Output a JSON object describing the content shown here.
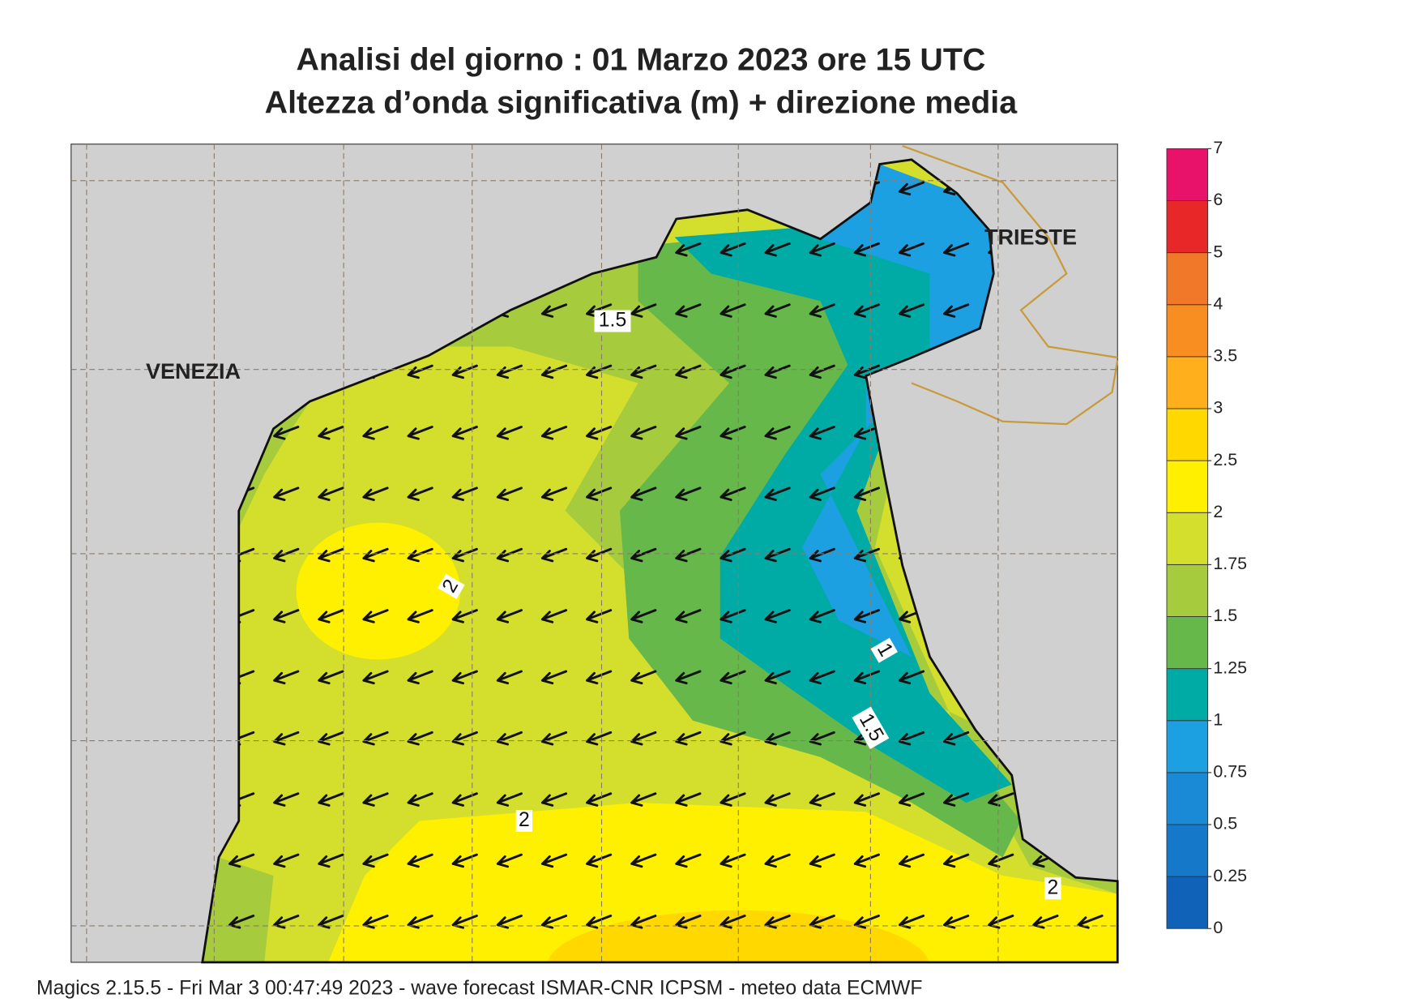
{
  "header": {
    "title": "Analisi del giorno :  01   Marzo   2023   ore 15 UTC",
    "subtitle": "Altezza d’onda significativa (m) + direzione media"
  },
  "map": {
    "places": [
      "VENEZIA",
      "TRIESTE"
    ],
    "contour_labels": [
      "1.5",
      "2",
      "1",
      "1.5",
      "2",
      "2"
    ]
  },
  "legend": {
    "levels": [
      0,
      0.25,
      0.5,
      0.75,
      1,
      1.25,
      1.5,
      1.75,
      2,
      2.5,
      3,
      3.5,
      4,
      5,
      6,
      7
    ],
    "colors": [
      "#1062b8",
      "#1578c8",
      "#1a8ad6",
      "#1ca0e2",
      "#00aba6",
      "#66b84a",
      "#a6cb3c",
      "#d4de2c",
      "#fff000",
      "#ffd800",
      "#ffae1c",
      "#f88e22",
      "#f07828",
      "#e82828",
      "#e8126a"
    ]
  },
  "footer": "Magics 2.15.5 - Fri Mar  3 00:47:49 2023 - wave forecast  ISMAR-CNR  ICPSM - meteo data   ECMWF"
}
